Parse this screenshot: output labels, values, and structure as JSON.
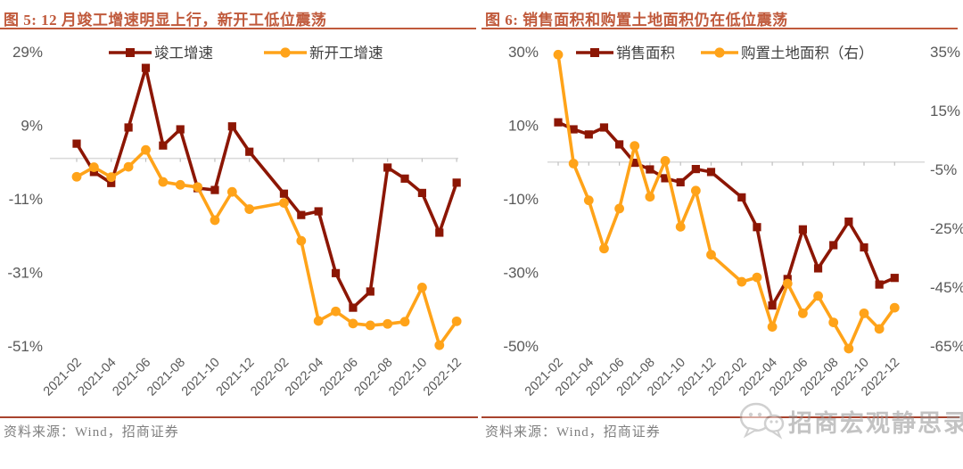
{
  "panels": [
    {
      "title": "图 5: 12 月竣工增速明显上行，新开工低位震荡",
      "source": "资料来源：Wind，招商证券"
    },
    {
      "title": "图 6: 销售面积和购置土地面积仍在低位震荡",
      "source": "资料来源：Wind，招商证券",
      "watermark_text": "招商宏观静思录"
    }
  ],
  "colors": {
    "maroon": "#8C1604",
    "orange": "#FFA319",
    "title_rust": "#C05A3C",
    "rule_red": "#A8432E",
    "axis_text": "#595959",
    "legend_text": "#404040",
    "grid_line": "#D9D9D9",
    "source_text": "#7F7F7F"
  },
  "chart_data": [
    {
      "type": "line",
      "title": "图 5: 12 月竣工增速明显上行，新开工低位震荡",
      "categories": [
        "2021-02",
        "2021-03",
        "2021-04",
        "2021-05",
        "2021-06",
        "2021-07",
        "2021-08",
        "2021-09",
        "2021-10",
        "2021-11",
        "2021-12",
        "2022-02",
        "2022-03",
        "2022-04",
        "2022-05",
        "2022-06",
        "2022-07",
        "2022-08",
        "2022-09",
        "2022-10",
        "2022-11",
        "2022-12"
      ],
      "x_tick_labels": [
        "2021-02",
        "2021-04",
        "2021-06",
        "2021-08",
        "2021-10",
        "2021-12",
        "2022-02",
        "2022-04",
        "2022-06",
        "2022-08",
        "2022-10",
        "2022-12"
      ],
      "left_axis": {
        "tick_labels": [
          "29%",
          "9%",
          "-11%",
          "-31%",
          "-51%"
        ],
        "max": 29,
        "min": -51
      },
      "grid": "zero-line-only",
      "legend_position": "top",
      "series": [
        {
          "name": "竣工增速",
          "axis": "left",
          "marker": "square",
          "color": "#8C1604",
          "values": [
            4.0,
            -3.7,
            -6.7,
            8.4,
            24.6,
            3.5,
            7.9,
            -8.1,
            -8.6,
            8.7,
            1.8,
            -9.6,
            -15.4,
            -14.4,
            -31.2,
            -40.6,
            -36.2,
            -2.5,
            -5.5,
            -9.4,
            -20.2,
            -6.6
          ]
        },
        {
          "name": "新开工增速",
          "axis": "left",
          "marker": "circle",
          "color": "#FFA319",
          "values": [
            -5.0,
            -2.4,
            -5.1,
            -2.3,
            2.3,
            -6.4,
            -7.2,
            -7.8,
            -16.8,
            -9.1,
            -13.8,
            -12.1,
            -22.4,
            -44.2,
            -41.6,
            -44.9,
            -45.4,
            -45.0,
            -44.4,
            -35.1,
            -50.8,
            -44.3
          ]
        }
      ]
    },
    {
      "type": "line",
      "title": "图 6: 销售面积和购置土地面积仍在低位震荡",
      "categories": [
        "2021-02",
        "2021-03",
        "2021-04",
        "2021-05",
        "2021-06",
        "2021-07",
        "2021-08",
        "2021-09",
        "2021-10",
        "2021-11",
        "2021-12",
        "2022-02",
        "2022-03",
        "2022-04",
        "2022-05",
        "2022-06",
        "2022-07",
        "2022-08",
        "2022-09",
        "2022-10",
        "2022-11",
        "2022-12"
      ],
      "x_tick_labels": [
        "2021-02",
        "2021-04",
        "2021-06",
        "2021-08",
        "2021-10",
        "2021-12",
        "2022-02",
        "2022-04",
        "2022-06",
        "2022-08",
        "2022-10",
        "2022-12"
      ],
      "left_axis": {
        "tick_labels": [
          "30%",
          "10%",
          "-10%",
          "-30%",
          "-50%"
        ],
        "max": 30,
        "min": -50
      },
      "right_axis": {
        "tick_labels": [
          "35%",
          "15%",
          "-5%",
          "-25%",
          "-45%",
          "-65%"
        ],
        "max": 35,
        "min": -65
      },
      "grid": "zero-line-only",
      "legend_position": "top",
      "series": [
        {
          "name": "销售面积",
          "axis": "left",
          "marker": "square",
          "color": "#8C1604",
          "values": [
            10.8,
            8.9,
            7.5,
            9.4,
            4.8,
            -0.2,
            -2.0,
            -4.4,
            -5.5,
            -1.9,
            -2.7,
            -9.6,
            -17.7,
            -39.0,
            -31.8,
            -18.3,
            -28.9,
            -22.6,
            -16.2,
            -23.2,
            -33.3,
            -31.5
          ]
        },
        {
          "name": "购置土地面积（右）",
          "axis": "right",
          "marker": "circle",
          "color": "#FFA319",
          "values": [
            34.0,
            -3.0,
            -15.5,
            -31.9,
            -18.3,
            3.0,
            -14.3,
            -2.1,
            -24.5,
            -12.2,
            -34.0,
            -43.2,
            -41.7,
            -58.5,
            -43.8,
            -53.9,
            -48.0,
            -57.0,
            -65.9,
            -53.9,
            -59.2,
            -52.0
          ]
        }
      ]
    }
  ]
}
